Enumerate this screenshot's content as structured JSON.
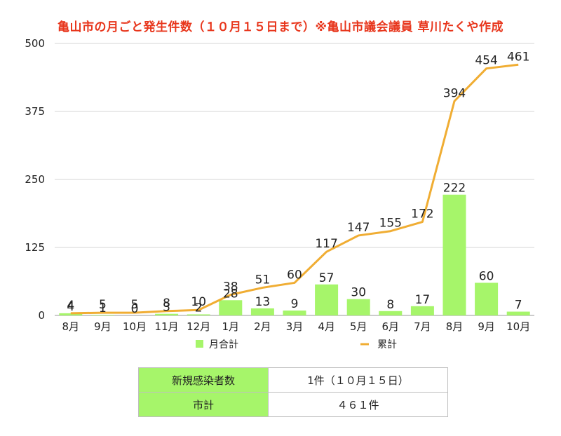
{
  "chart_data": {
    "type": "bar+line",
    "title": "亀山市の月ごと発生件数（１０月１５日まで）※亀山市議会議員 草川たくや作成",
    "categories": [
      "8月",
      "9月",
      "10月",
      "11月",
      "12月",
      "1月",
      "2月",
      "3月",
      "4月",
      "5月",
      "6月",
      "7月",
      "8月",
      "9月",
      "10月"
    ],
    "series": [
      {
        "name": "月合計",
        "type": "bar",
        "color": "#a6f56a",
        "values": [
          4,
          1,
          0,
          3,
          2,
          28,
          13,
          9,
          57,
          30,
          8,
          17,
          222,
          60,
          7
        ]
      },
      {
        "name": "累計",
        "type": "line",
        "color": "#f0ad33",
        "values": [
          4,
          5,
          5,
          8,
          10,
          38,
          51,
          60,
          117,
          147,
          155,
          172,
          394,
          454,
          461
        ]
      }
    ],
    "ylim": [
      0,
      500
    ],
    "yticks": [
      0,
      125,
      250,
      375,
      500
    ],
    "grid": true,
    "legend": "bottom"
  },
  "table": {
    "rows": [
      {
        "key": "新規感染者数",
        "value": "1件（１０月１５日）"
      },
      {
        "key": "市計",
        "value": "４６１件"
      }
    ]
  }
}
